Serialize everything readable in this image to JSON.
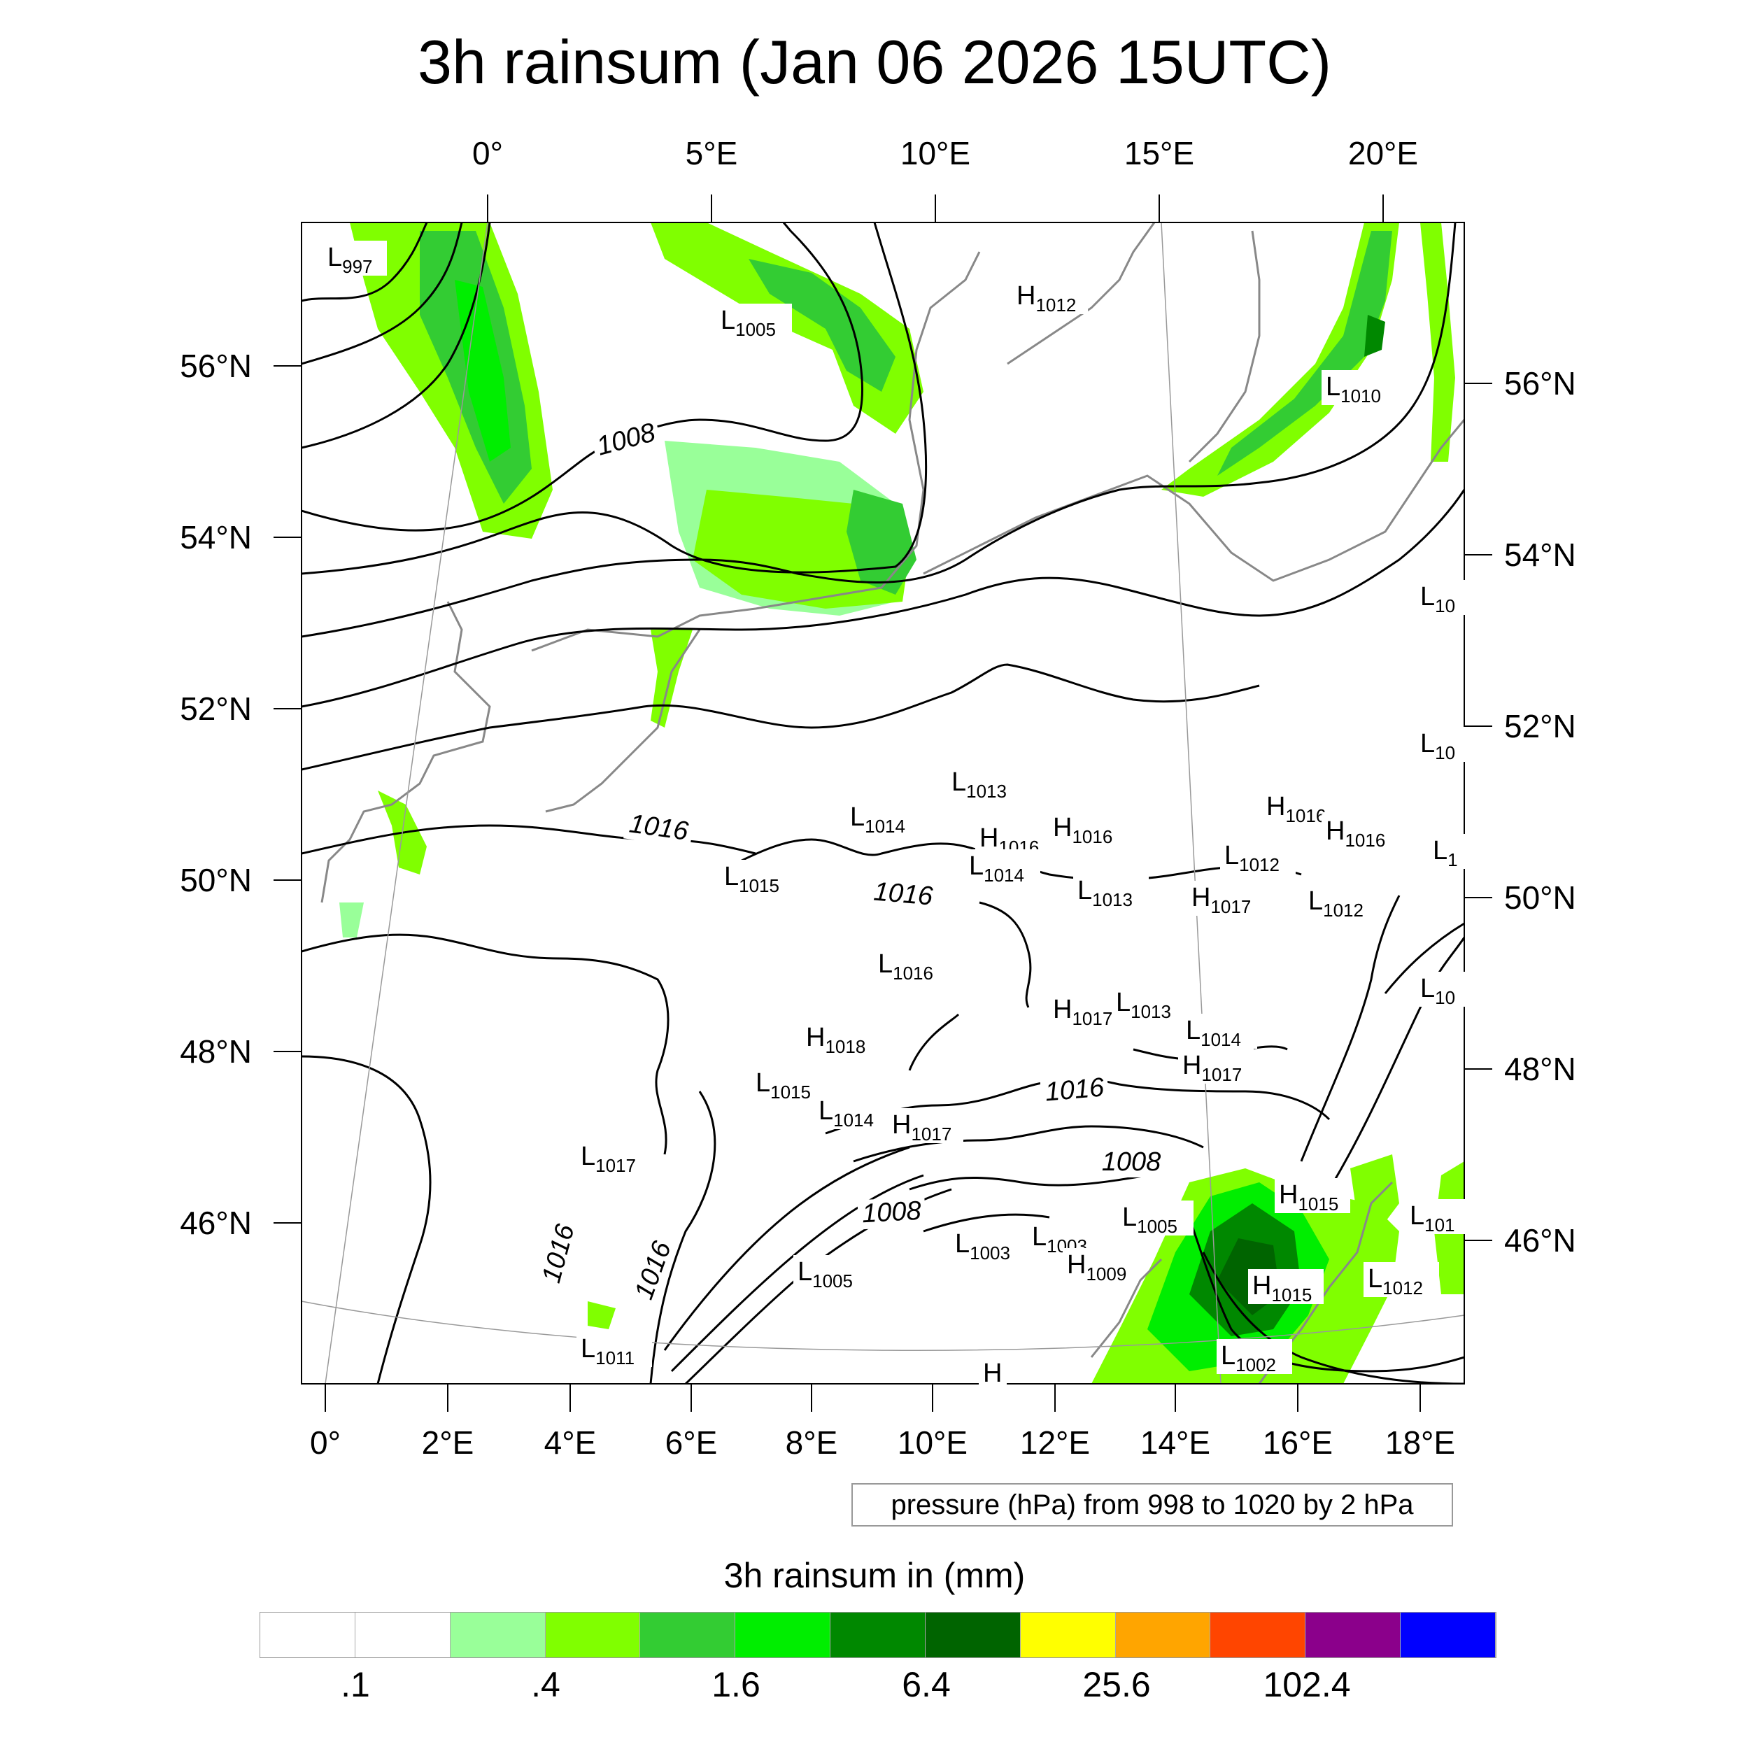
{
  "title": "3h rainsum (Jan 06 2026 15UTC)",
  "top_lon_labels": [
    "0°",
    "5°E",
    "10°E",
    "15°E",
    "20°E"
  ],
  "bottom_lon_labels": [
    "0°",
    "2°E",
    "4°E",
    "6°E",
    "8°E",
    "10°E",
    "12°E",
    "14°E",
    "16°E",
    "18°E"
  ],
  "left_lat_labels": [
    "56°N",
    "54°N",
    "52°N",
    "50°N",
    "48°N",
    "46°N"
  ],
  "right_lat_labels": [
    "56°N",
    "54°N",
    "52°N",
    "50°N",
    "48°N",
    "46°N"
  ],
  "pressure_centers": [
    {
      "letter": "L",
      "value": "997"
    },
    {
      "letter": "L",
      "value": "1005"
    },
    {
      "letter": "H",
      "value": "1012"
    },
    {
      "letter": "L",
      "value": "1010"
    },
    {
      "letter": "L",
      "value": "10"
    },
    {
      "letter": "L",
      "value": "10"
    },
    {
      "letter": "L",
      "value": "1013"
    },
    {
      "letter": "L",
      "value": "1014"
    },
    {
      "letter": "H",
      "value": "1016"
    },
    {
      "letter": "H",
      "value": "1016"
    },
    {
      "letter": "H",
      "value": "1016"
    },
    {
      "letter": "H",
      "value": "1016"
    },
    {
      "letter": "L",
      "value": "1015"
    },
    {
      "letter": "L",
      "value": "1014"
    },
    {
      "letter": "L",
      "value": "1012"
    },
    {
      "letter": "L",
      "value": "1"
    },
    {
      "letter": "L",
      "value": "1013"
    },
    {
      "letter": "H",
      "value": "1017"
    },
    {
      "letter": "L",
      "value": "1012"
    },
    {
      "letter": "L",
      "value": "1016"
    },
    {
      "letter": "L",
      "value": "10"
    },
    {
      "letter": "H",
      "value": "1017"
    },
    {
      "letter": "L",
      "value": "1013"
    },
    {
      "letter": "L",
      "value": "1014"
    },
    {
      "letter": "H",
      "value": "1018"
    },
    {
      "letter": "H",
      "value": "1017"
    },
    {
      "letter": "L",
      "value": "1015"
    },
    {
      "letter": "L",
      "value": "1014"
    },
    {
      "letter": "H",
      "value": "1017"
    },
    {
      "letter": "L",
      "value": "1017"
    },
    {
      "letter": "H",
      "value": "1015"
    },
    {
      "letter": "L",
      "value": "1005"
    },
    {
      "letter": "L",
      "value": "101"
    },
    {
      "letter": "L",
      "value": "1003"
    },
    {
      "letter": "L",
      "value": "1003"
    },
    {
      "letter": "H",
      "value": "1009"
    },
    {
      "letter": "L",
      "value": "1005"
    },
    {
      "letter": "H",
      "value": "1015"
    },
    {
      "letter": "L",
      "value": "1012"
    },
    {
      "letter": "L",
      "value": "1011"
    },
    {
      "letter": "L",
      "value": "1002"
    },
    {
      "letter": "H",
      "value": ""
    }
  ],
  "contour_labels": [
    "1008",
    "1016",
    "1016",
    "1016",
    "1008",
    "1008",
    "1016",
    "1016"
  ],
  "info_box": "pressure (hPa) from 998 to 1020 by 2 hPa",
  "legend": {
    "title": "3h rainsum in (mm)",
    "colors": [
      "#ffffff",
      "#ffffff",
      "#99ff99",
      "#80ff00",
      "#33cc33",
      "#00ee00",
      "#008800",
      "#006400",
      "#ffff00",
      "#ffa500",
      "#ff4500",
      "#8b008b",
      "#0000ff"
    ],
    "labels": [
      ".1",
      ".4",
      "1.6",
      "6.4",
      "25.6",
      "102.4"
    ]
  }
}
